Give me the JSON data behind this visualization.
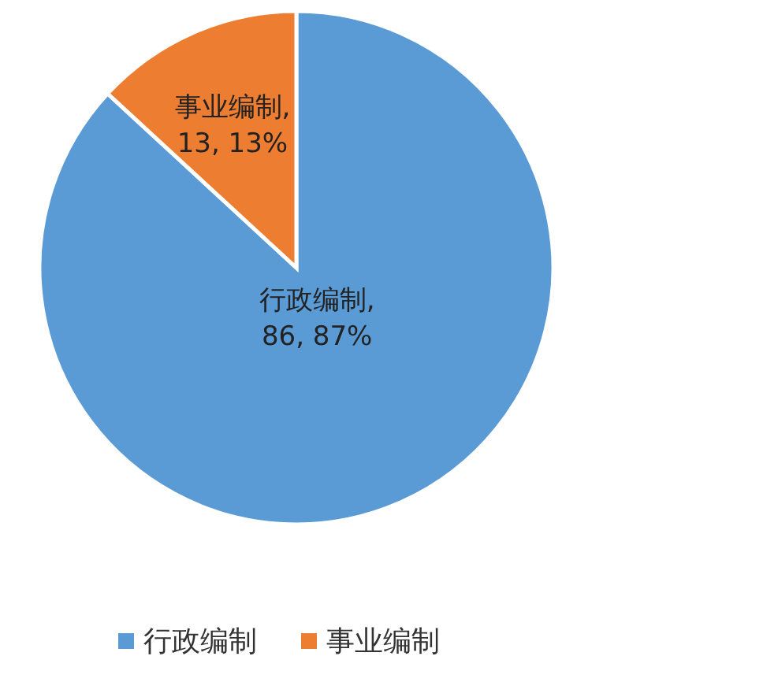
{
  "chart_data": {
    "type": "pie",
    "categories": [
      "行政编制",
      "事业编制"
    ],
    "values": [
      86,
      13
    ],
    "colors": [
      "#5b9bd5",
      "#ed7d31"
    ],
    "value_labels": [
      "行政编制, 86, 87%",
      "事业编制, 13, 13%"
    ],
    "legend": "bottom"
  }
}
